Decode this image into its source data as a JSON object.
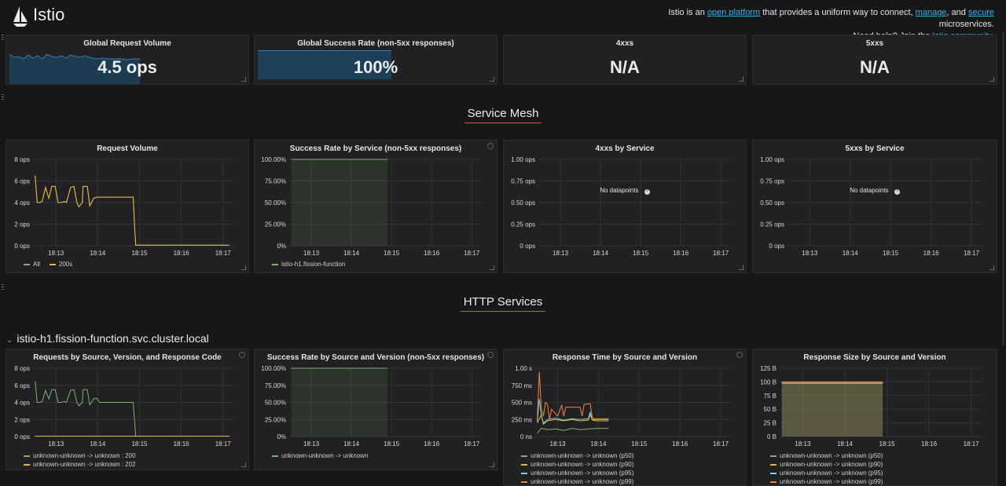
{
  "header": {
    "brand": "Istio",
    "tagline": {
      "t1": "Istio is an ",
      "link1": "open platform",
      "t2": " that provides a uniform way to connect, ",
      "link2": "manage",
      "t3": ", and ",
      "link3": "secure",
      "t4": " microservices.",
      "t5": "Need help? Join the ",
      "link4": "Istio community",
      "t6": "."
    }
  },
  "stats": [
    {
      "title": "Global Request Volume",
      "value": "4.5 ops"
    },
    {
      "title": "Global Success Rate (non-5xx responses)",
      "value": "100%"
    },
    {
      "title": "4xxs",
      "value": "N/A"
    },
    {
      "title": "5xxs",
      "value": "N/A"
    }
  ],
  "sections": {
    "mesh": "Service Mesh",
    "http": "HTTP Services"
  },
  "service": {
    "name": "istio-h1.fission-function.svc.cluster.local"
  },
  "no_data": "No datapoints",
  "colors": {
    "green": "#7eb26d",
    "yellow": "#eab839",
    "cyan": "#6ed0e0",
    "orange": "#ef843c",
    "accent": "#d9581c",
    "link": "#33b5e5"
  },
  "mesh_panels": {
    "request_volume": {
      "title": "Request Volume",
      "legend": [
        {
          "label": "All",
          "color": "#7eb26d"
        },
        {
          "label": "200s",
          "color": "#eab839"
        }
      ]
    },
    "success_rate": {
      "title": "Success Rate by Service (non-5xx responses)",
      "legend": [
        {
          "label": "istio-h1.fission-function",
          "color": "#7eb26d"
        }
      ]
    },
    "4xx": {
      "title": "4xxs by Service"
    },
    "5xx": {
      "title": "5xxs by Service"
    }
  },
  "http_panels": {
    "requests": {
      "title": "Requests by Source, Version, and Response Code",
      "legend": [
        {
          "label": "unknown-unknown -> unknown : 200",
          "color": "#7eb26d"
        },
        {
          "label": "unknown-unknown -> unknown : 202",
          "color": "#eab839"
        }
      ]
    },
    "success": {
      "title": "Success Rate by Source and Version (non-5xx responses)",
      "legend": [
        {
          "label": "unknown-unknown -> unknown",
          "color": "#7eb26d"
        }
      ]
    },
    "response_time": {
      "title": "Response Time by Source and Version",
      "legend": [
        {
          "label": "unknown-unknown -> unknown (p50)",
          "color": "#7eb26d"
        },
        {
          "label": "unknown-unknown -> unknown (p90)",
          "color": "#eab839"
        },
        {
          "label": "unknown-unknown -> unknown (p95)",
          "color": "#6ed0e0"
        },
        {
          "label": "unknown-unknown -> unknown (p99)",
          "color": "#ef843c"
        }
      ]
    },
    "response_size": {
      "title": "Response Size by Source and Version",
      "legend": [
        {
          "label": "unknown-unknown -> unknown (p50)",
          "color": "#7eb26d"
        },
        {
          "label": "unknown-unknown -> unknown (p90)",
          "color": "#eab839"
        },
        {
          "label": "unknown-unknown -> unknown (p95)",
          "color": "#6ed0e0"
        },
        {
          "label": "unknown-unknown -> unknown (p99)",
          "color": "#ef843c"
        }
      ]
    }
  },
  "chart_data": [
    {
      "id": "request-volume",
      "type": "line",
      "title": "Request Volume",
      "y_ticks": [
        "0 ops",
        "2 ops",
        "4 ops",
        "6 ops",
        "8 ops"
      ],
      "ylim": [
        0,
        8
      ],
      "x_ticks": [
        "18:13",
        "18:14",
        "18:15",
        "18:16",
        "18:17"
      ],
      "x_tick_pos": [
        12.95,
        13.95,
        14.95,
        15.95,
        16.95
      ],
      "xlim": [
        12.4,
        17.2
      ],
      "series": [
        {
          "name": "All",
          "color": "#7eb26d",
          "x": [
            12.45,
            12.5,
            12.55,
            12.62,
            12.7,
            12.78,
            12.85,
            12.93,
            13.0,
            13.07,
            13.15,
            13.2,
            13.3,
            13.38,
            13.45,
            13.5,
            13.58,
            13.6,
            13.7,
            13.76,
            13.8,
            13.85,
            13.92,
            14.0,
            14.8,
            14.83,
            14.86,
            17.1
          ],
          "y": [
            6.5,
            4.0,
            4.0,
            4.1,
            5.4,
            4.4,
            5.5,
            5.5,
            4.0,
            4.0,
            4.1,
            4.0,
            5.4,
            5.5,
            4.0,
            3.6,
            4.0,
            5.5,
            5.5,
            3.7,
            4.0,
            4.4,
            4.5,
            4.5,
            4.5,
            2.0,
            0.05,
            0.05
          ]
        },
        {
          "name": "200s",
          "color": "#eab839",
          "x": [
            12.45,
            12.5,
            12.55,
            12.62,
            12.7,
            12.78,
            12.85,
            12.93,
            13.0,
            13.07,
            13.15,
            13.2,
            13.3,
            13.38,
            13.45,
            13.5,
            13.58,
            13.6,
            13.7,
            13.76,
            13.8,
            13.85,
            13.92,
            14.0,
            14.8,
            14.83,
            14.86,
            17.1
          ],
          "y": [
            6.5,
            4.0,
            4.0,
            4.1,
            5.4,
            4.4,
            5.5,
            5.5,
            4.0,
            4.0,
            4.1,
            4.0,
            5.4,
            5.5,
            4.0,
            3.6,
            4.0,
            5.5,
            5.5,
            3.7,
            4.0,
            4.4,
            4.5,
            4.5,
            4.5,
            2.0,
            0.05,
            0.05
          ]
        }
      ]
    },
    {
      "id": "success-rate",
      "type": "area",
      "title": "Success Rate by Service (non-5xx responses)",
      "y_ticks": [
        "0%",
        "25.00%",
        "50.00%",
        "75.00%",
        "100.00%"
      ],
      "ylim": [
        0,
        100
      ],
      "x_ticks": [
        "18:13",
        "18:14",
        "18:15",
        "18:16",
        "18:17"
      ],
      "x_tick_pos": [
        12.95,
        13.95,
        14.95,
        15.95,
        16.95
      ],
      "xlim": [
        12.4,
        17.2
      ],
      "series": [
        {
          "name": "istio-h1.fission-function",
          "color": "#7eb26d",
          "x": [
            12.45,
            14.85
          ],
          "y": [
            100,
            100
          ]
        }
      ]
    },
    {
      "id": "4xx",
      "type": "line",
      "title": "4xxs by Service",
      "y_ticks": [
        "0 ops",
        "0.25 ops",
        "0.50 ops",
        "0.75 ops",
        "1.00 ops"
      ],
      "ylim": [
        0,
        1
      ],
      "x_ticks": [
        "18:13",
        "18:14",
        "18:15",
        "18:16",
        "18:17"
      ],
      "x_tick_pos": [
        12.95,
        13.95,
        14.95,
        15.95,
        16.95
      ],
      "xlim": [
        12.4,
        17.2
      ],
      "series": []
    },
    {
      "id": "5xx",
      "type": "line",
      "title": "5xxs by Service",
      "y_ticks": [
        "0 ops",
        "0.25 ops",
        "0.50 ops",
        "0.75 ops",
        "1.00 ops"
      ],
      "ylim": [
        0,
        1
      ],
      "x_ticks": [
        "18:13",
        "18:14",
        "18:15",
        "18:16",
        "18:17"
      ],
      "x_tick_pos": [
        12.95,
        13.95,
        14.95,
        15.95,
        16.95
      ],
      "xlim": [
        12.4,
        17.2
      ],
      "series": []
    },
    {
      "id": "requests",
      "type": "line",
      "title": "Requests by Source, Version, and Response Code",
      "y_ticks": [
        "0 ops",
        "2 ops",
        "4 ops",
        "6 ops",
        "8 ops"
      ],
      "ylim": [
        0,
        8
      ],
      "x_ticks": [
        "18:13",
        "18:14",
        "18:15",
        "18:16",
        "18:17"
      ],
      "x_tick_pos": [
        12.95,
        13.95,
        14.95,
        15.95,
        16.95
      ],
      "xlim": [
        12.4,
        17.2
      ],
      "series": [
        {
          "name": "unknown-unknown -> unknown : 200",
          "color": "#7eb26d",
          "x": [
            12.45,
            12.5,
            12.55,
            12.62,
            12.7,
            12.78,
            12.85,
            12.93,
            13.0,
            13.07,
            13.15,
            13.2,
            13.3,
            13.38,
            13.45,
            13.5,
            13.58,
            13.6,
            13.7,
            13.76,
            13.8,
            13.85,
            13.92,
            14.0,
            14.8,
            14.83,
            14.86,
            17.1
          ],
          "y": [
            6.5,
            4.0,
            4.0,
            4.1,
            5.4,
            4.4,
            5.5,
            5.5,
            4.0,
            4.0,
            4.1,
            4.0,
            5.4,
            5.5,
            4.0,
            3.6,
            4.0,
            5.5,
            5.5,
            3.7,
            4.0,
            4.4,
            4.5,
            4.0,
            4.0,
            2.0,
            0.05,
            0.05
          ]
        },
        {
          "name": "unknown-unknown -> unknown : 202",
          "color": "#eab839",
          "x": [
            12.45,
            17.1
          ],
          "y": [
            0.05,
            0.05
          ]
        }
      ]
    },
    {
      "id": "success-source",
      "type": "area",
      "title": "Success Rate by Source and Version (non-5xx responses)",
      "y_ticks": [
        "0%",
        "25.00%",
        "50.00%",
        "75.00%",
        "100.00%"
      ],
      "ylim": [
        0,
        100
      ],
      "x_ticks": [
        "18:13",
        "18:14",
        "18:15",
        "18:16",
        "18:17"
      ],
      "x_tick_pos": [
        12.95,
        13.95,
        14.95,
        15.95,
        16.95
      ],
      "xlim": [
        12.4,
        17.2
      ],
      "series": [
        {
          "name": "unknown-unknown -> unknown",
          "color": "#7eb26d",
          "x": [
            12.45,
            14.85
          ],
          "y": [
            100,
            100
          ]
        }
      ]
    },
    {
      "id": "response-time",
      "type": "line",
      "title": "Response Time by Source and Version",
      "y_ticks": [
        "0 ns",
        "250 ms",
        "500 ms",
        "750 ms",
        "1.00 s"
      ],
      "ylim": [
        0,
        1000
      ],
      "x_ticks": [
        "18:13",
        "18:14",
        "18:15",
        "18:16",
        "18:17"
      ],
      "x_tick_pos": [
        12.95,
        13.95,
        14.95,
        15.95,
        16.95
      ],
      "xlim": [
        12.4,
        17.2
      ],
      "series": [
        {
          "name": "unknown-unknown -> unknown (p50)",
          "color": "#7eb26d",
          "x": [
            12.45,
            12.55,
            12.7,
            12.9,
            13.1,
            13.3,
            13.5,
            13.7,
            13.9,
            14.2
          ],
          "y": [
            50,
            120,
            100,
            110,
            90,
            120,
            100,
            110,
            120,
            120
          ]
        },
        {
          "name": "unknown-unknown -> unknown (p90)",
          "color": "#eab839",
          "x": [
            12.45,
            12.55,
            12.6,
            12.7,
            12.9,
            13.1,
            13.3,
            13.5,
            13.7,
            13.75,
            13.8,
            13.9,
            14.2
          ],
          "y": [
            200,
            320,
            180,
            230,
            250,
            230,
            250,
            230,
            240,
            320,
            240,
            230,
            230
          ]
        },
        {
          "name": "unknown-unknown -> unknown (p95)",
          "color": "#6ed0e0",
          "x": [
            12.45,
            12.5,
            12.55,
            12.6,
            12.7,
            12.9,
            13.1,
            13.3,
            13.5,
            13.7,
            13.75,
            13.8,
            13.9,
            14.2
          ],
          "y": [
            220,
            550,
            300,
            200,
            250,
            270,
            240,
            260,
            250,
            260,
            360,
            250,
            250,
            250
          ]
        },
        {
          "name": "unknown-unknown -> unknown (p99)",
          "color": "#ef843c",
          "x": [
            12.45,
            12.5,
            12.55,
            12.6,
            12.65,
            12.7,
            12.75,
            12.8,
            12.95,
            13.05,
            13.1,
            13.15,
            13.5,
            13.55,
            13.6,
            13.75,
            13.8,
            13.85,
            14.2
          ],
          "y": [
            250,
            950,
            400,
            300,
            500,
            470,
            250,
            400,
            300,
            460,
            300,
            430,
            430,
            300,
            470,
            480,
            280,
            260,
            260
          ]
        }
      ]
    },
    {
      "id": "response-size",
      "type": "area",
      "title": "Response Size by Source and Version",
      "y_ticks": [
        "0 B",
        "25 B",
        "50 B",
        "75 B",
        "100 B",
        "125 B"
      ],
      "ylim": [
        0,
        125
      ],
      "x_ticks": [
        "18:13",
        "18:14",
        "18:15",
        "18:16",
        "18:17"
      ],
      "x_tick_pos": [
        12.95,
        13.95,
        14.95,
        15.95,
        16.95
      ],
      "xlim": [
        12.4,
        17.2
      ],
      "series": [
        {
          "name": "unknown-unknown -> unknown (p50)",
          "color": "#7eb26d",
          "x": [
            12.45,
            14.85
          ],
          "y": [
            97,
            97
          ]
        },
        {
          "name": "unknown-unknown -> unknown (p90)",
          "color": "#eab839",
          "x": [
            12.45,
            14.85
          ],
          "y": [
            99,
            99
          ]
        },
        {
          "name": "unknown-unknown -> unknown (p95)",
          "color": "#6ed0e0",
          "x": [
            12.45,
            14.85
          ],
          "y": [
            99.5,
            99.5
          ]
        },
        {
          "name": "unknown-unknown -> unknown (p99)",
          "color": "#ef843c",
          "x": [
            12.45,
            14.85
          ],
          "y": [
            100,
            100
          ]
        }
      ]
    }
  ]
}
